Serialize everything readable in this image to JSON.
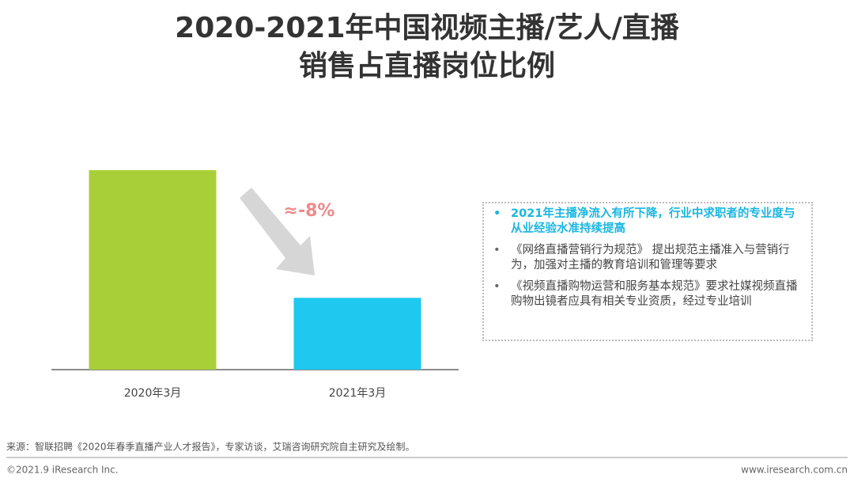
{
  "chart_data": {
    "type": "bar",
    "title": [
      "2020-2021年中国视频主播/艺人/直播",
      "销售占直播岗位比例"
    ],
    "categories": [
      "2020年3月",
      "2021年3月"
    ],
    "values": [
      12.5,
      4.5
    ],
    "colors": [
      "#a9cf38",
      "#1ec8ee"
    ],
    "annotation": "≈-8%"
  },
  "notes": [
    "2021年主播净流入有所下降，行业中求职者的专业度与从业经验水准持续提高",
    "《网络直播营销行为规范》 提出规范主播准入与营销行为，加强对主播的教育培训和管理等要求",
    "《视频直播购物运营和服务基本规范》要求社媒视频直播购物出镜者应具有相关专业资质，经过专业培训"
  ],
  "source": "来源：智联招聘《2020年春季直播产业人才报告》，专家访谈，艾瑞咨询研究院自主研究及绘制。",
  "footer": {
    "copyright": "©2021.9 iResearch Inc.",
    "website": "www.iresearch.com.cn"
  }
}
